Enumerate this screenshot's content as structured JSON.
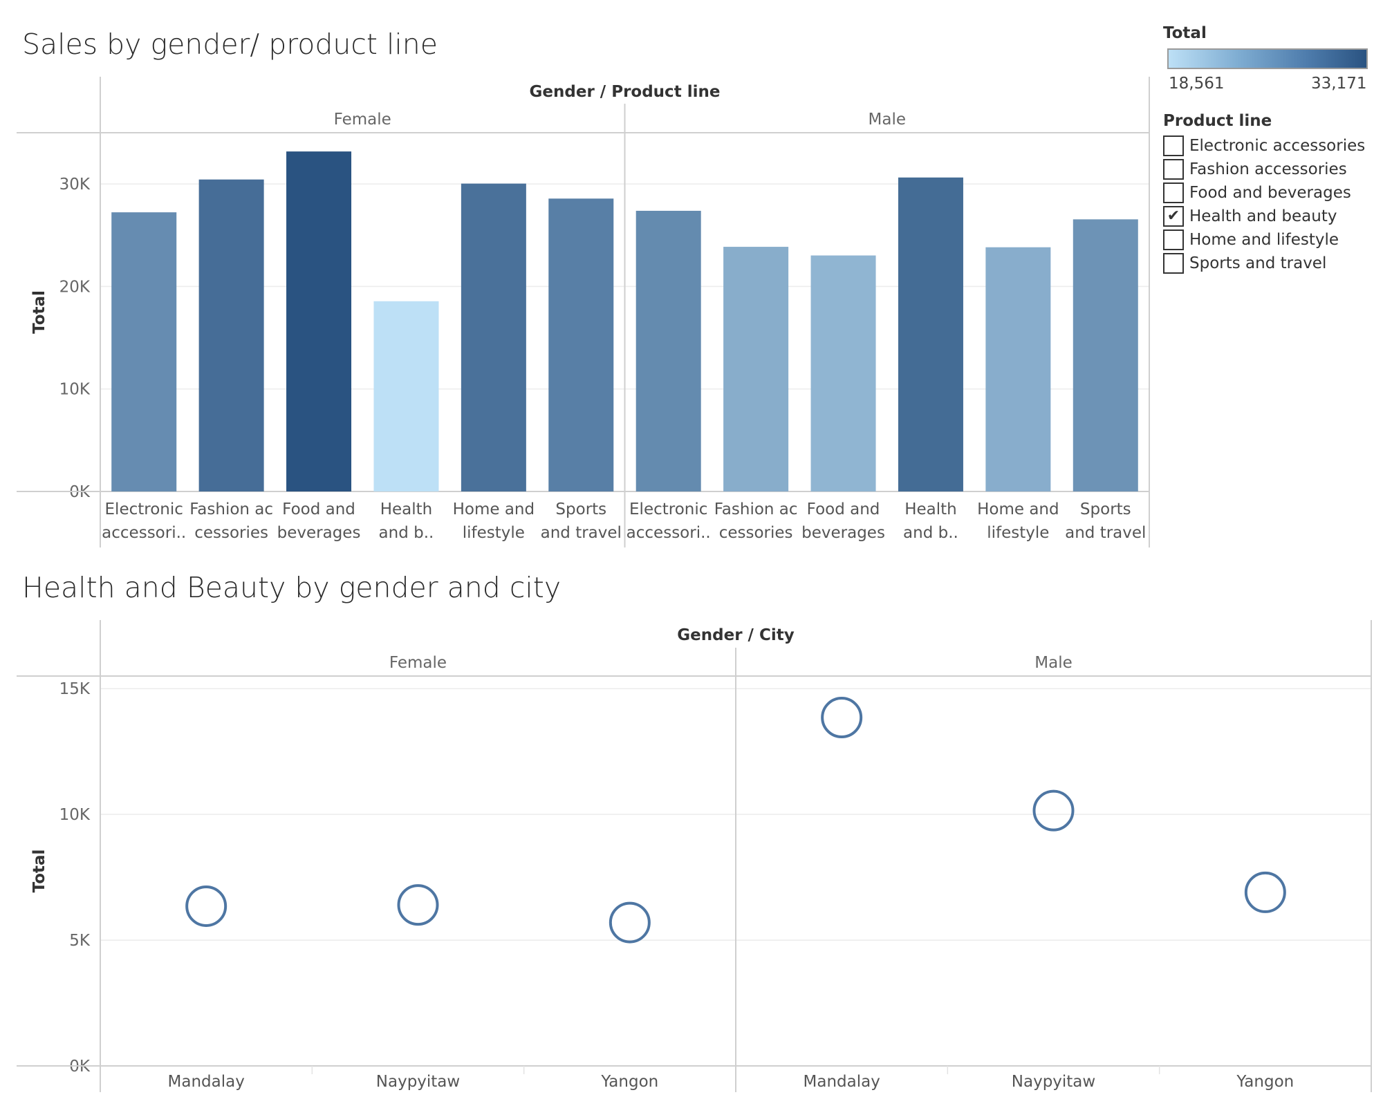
{
  "top_title": "Sales by gender/ product line",
  "bottom_title": "Health and Beauty by gender and city",
  "legend": {
    "color_title": "Total",
    "min_label": "18,561",
    "max_label": "33,171",
    "color_min": "#bde0f6",
    "color_max": "#2a5381"
  },
  "filter": {
    "title": "Product line",
    "items": [
      {
        "label": "Electronic accessories",
        "checked": false
      },
      {
        "label": "Fashion accessories",
        "checked": false
      },
      {
        "label": "Food and beverages",
        "checked": false
      },
      {
        "label": "Health and beauty",
        "checked": true
      },
      {
        "label": "Home and lifestyle",
        "checked": false
      },
      {
        "label": "Sports and travel",
        "checked": false
      }
    ]
  },
  "chart_data": [
    {
      "type": "bar",
      "header": "Gender  /  Product line",
      "ylabel": "Total",
      "ylim": [
        0,
        35000
      ],
      "yticks": [
        0,
        10000,
        20000,
        30000
      ],
      "ytick_labels": [
        "0K",
        "10K",
        "20K",
        "30K"
      ],
      "groups": [
        "Female",
        "Male"
      ],
      "category_labels": [
        [
          "Electronic",
          "accessori.."
        ],
        [
          "Fashion ac",
          "cessories"
        ],
        [
          "Food and",
          "beverages"
        ],
        [
          "Health",
          "and b.."
        ],
        [
          "Home and",
          "lifestyle"
        ],
        [
          "Sports",
          "and travel"
        ]
      ],
      "values": [
        [
          27236,
          30437,
          33171,
          18561,
          30037,
          28575
        ],
        [
          27383,
          23869,
          23026,
          30632,
          23826,
          26549
        ]
      ]
    },
    {
      "type": "scatter",
      "header": "Gender  /  City",
      "ylabel": "Total",
      "ylim": [
        0,
        15500
      ],
      "yticks": [
        0,
        5000,
        10000,
        15000
      ],
      "ytick_labels": [
        "0K",
        "5K",
        "10K",
        "15K"
      ],
      "groups": [
        "Female",
        "Male"
      ],
      "categories": [
        "Mandalay",
        "Naypyitaw",
        "Yangon"
      ],
      "values": [
        [
          6350,
          6400,
          5700
        ],
        [
          13850,
          10150,
          6900
        ]
      ],
      "marker_color": "#4e76a3"
    }
  ]
}
